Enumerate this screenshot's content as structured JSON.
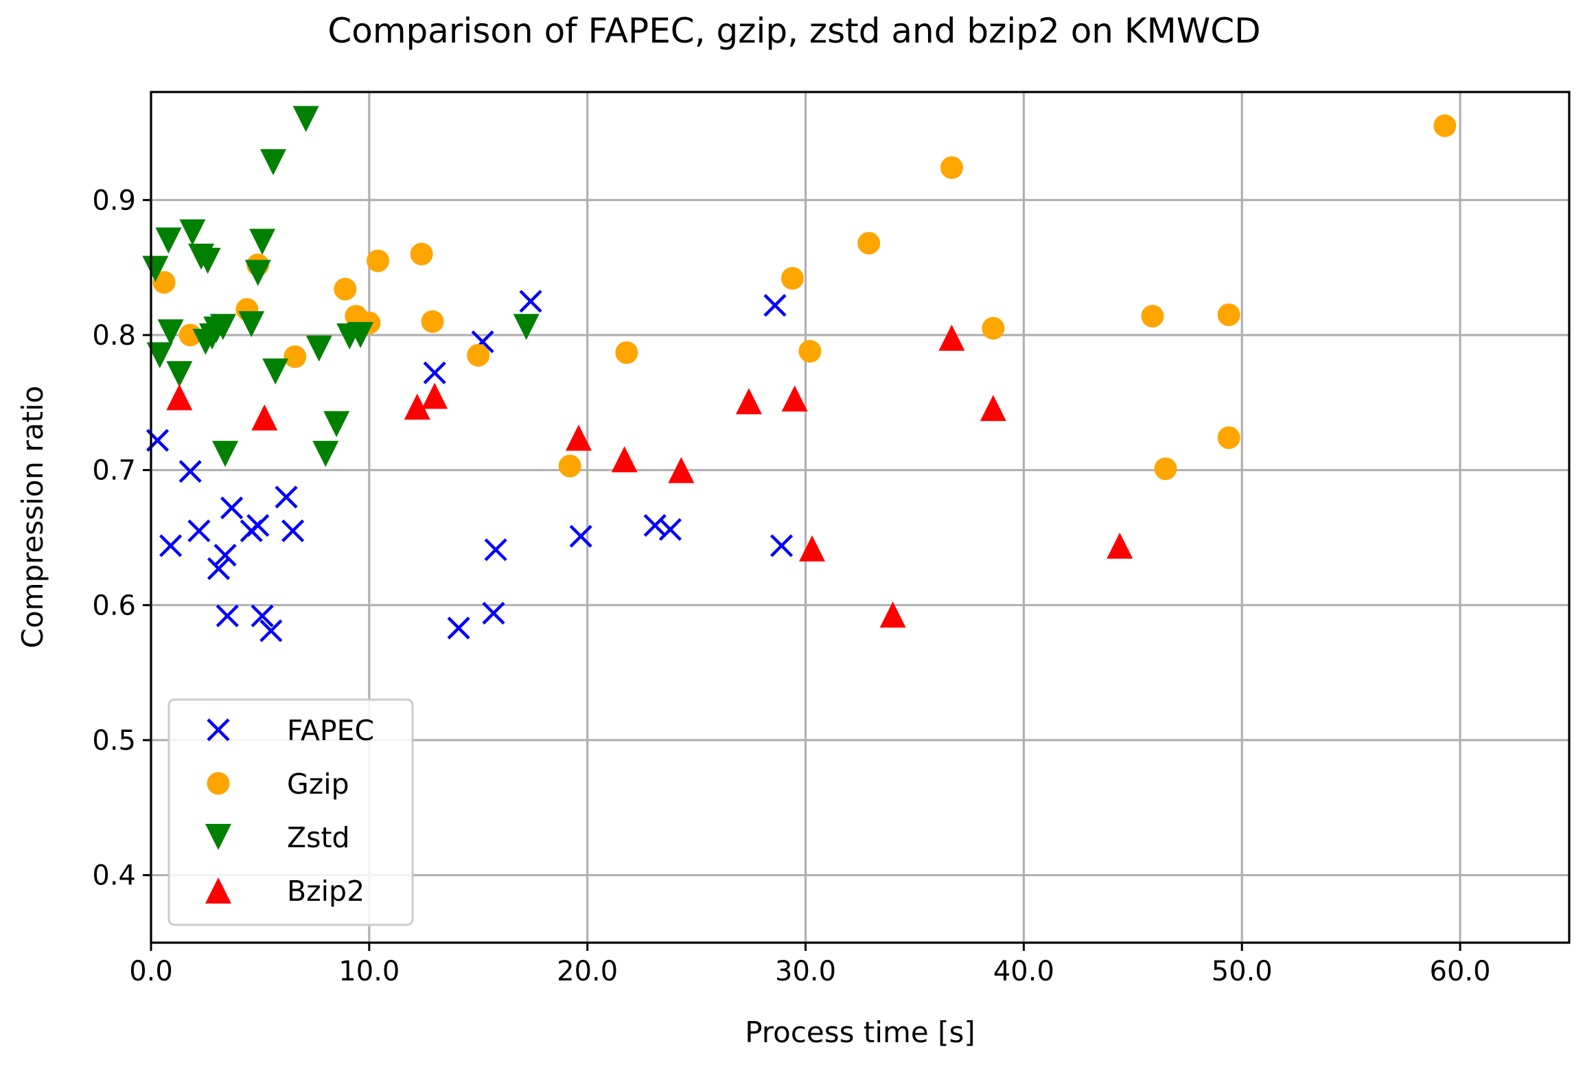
{
  "chart_data": {
    "type": "scatter",
    "title": "Comparison of FAPEC, gzip, zstd and bzip2 on KMWCD",
    "xlabel": "Process time [s]",
    "ylabel": "Compression ratio",
    "xlim": [
      0,
      65
    ],
    "ylim": [
      0.35,
      0.98
    ],
    "xticks": [
      0,
      10,
      20,
      30,
      40,
      50,
      60
    ],
    "xtick_labels": [
      "0.0",
      "10.0",
      "20.0",
      "30.0",
      "40.0",
      "50.0",
      "60.0"
    ],
    "yticks": [
      0.4,
      0.5,
      0.6,
      0.7,
      0.8,
      0.9
    ],
    "ytick_labels": [
      "0.4",
      "0.5",
      "0.6",
      "0.7",
      "0.8",
      "0.9"
    ],
    "grid": true,
    "legend_position": "lower-left",
    "series": [
      {
        "name": "FAPEC",
        "marker": "x",
        "color": "#0000ff",
        "points": [
          [
            0.3,
            0.722
          ],
          [
            0.9,
            0.644
          ],
          [
            1.8,
            0.699
          ],
          [
            2.2,
            0.655
          ],
          [
            3.1,
            0.627
          ],
          [
            3.4,
            0.637
          ],
          [
            3.5,
            0.592
          ],
          [
            3.7,
            0.672
          ],
          [
            4.6,
            0.655
          ],
          [
            4.9,
            0.659
          ],
          [
            5.1,
            0.592
          ],
          [
            5.5,
            0.581
          ],
          [
            6.2,
            0.68
          ],
          [
            6.5,
            0.655
          ],
          [
            14.1,
            0.583
          ],
          [
            15.2,
            0.795
          ],
          [
            15.7,
            0.594
          ],
          [
            15.8,
            0.641
          ],
          [
            17.4,
            0.825
          ],
          [
            13.0,
            0.772
          ],
          [
            19.7,
            0.651
          ],
          [
            23.1,
            0.659
          ],
          [
            23.8,
            0.656
          ],
          [
            28.6,
            0.822
          ],
          [
            28.9,
            0.644
          ]
        ]
      },
      {
        "name": "Gzip",
        "marker": "o",
        "color": "#ffa500",
        "points": [
          [
            0.6,
            0.839
          ],
          [
            1.8,
            0.8
          ],
          [
            4.4,
            0.819
          ],
          [
            4.9,
            0.852
          ],
          [
            6.6,
            0.784
          ],
          [
            8.9,
            0.834
          ],
          [
            9.4,
            0.814
          ],
          [
            10.0,
            0.809
          ],
          [
            10.4,
            0.855
          ],
          [
            12.4,
            0.86
          ],
          [
            12.9,
            0.81
          ],
          [
            15.0,
            0.785
          ],
          [
            19.2,
            0.703
          ],
          [
            21.8,
            0.787
          ],
          [
            29.4,
            0.842
          ],
          [
            30.2,
            0.788
          ],
          [
            32.9,
            0.868
          ],
          [
            36.7,
            0.924
          ],
          [
            38.6,
            0.805
          ],
          [
            45.9,
            0.814
          ],
          [
            46.5,
            0.701
          ],
          [
            49.4,
            0.815
          ],
          [
            49.4,
            0.724
          ],
          [
            59.3,
            0.955
          ]
        ]
      },
      {
        "name": "Zstd",
        "marker": "v",
        "color": "#008000",
        "points": [
          [
            0.2,
            0.849
          ],
          [
            0.4,
            0.785
          ],
          [
            0.8,
            0.87
          ],
          [
            0.9,
            0.802
          ],
          [
            1.3,
            0.771
          ],
          [
            1.9,
            0.876
          ],
          [
            2.3,
            0.858
          ],
          [
            2.5,
            0.795
          ],
          [
            2.6,
            0.855
          ],
          [
            2.8,
            0.799
          ],
          [
            3.0,
            0.804
          ],
          [
            3.3,
            0.806
          ],
          [
            3.4,
            0.712
          ],
          [
            4.6,
            0.808
          ],
          [
            4.9,
            0.846
          ],
          [
            5.1,
            0.869
          ],
          [
            5.6,
            0.928
          ],
          [
            5.7,
            0.773
          ],
          [
            7.1,
            0.96
          ],
          [
            7.7,
            0.79
          ],
          [
            8.0,
            0.712
          ],
          [
            8.5,
            0.734
          ],
          [
            9.1,
            0.799
          ],
          [
            9.6,
            0.8
          ],
          [
            17.2,
            0.806
          ]
        ]
      },
      {
        "name": "Bzip2",
        "marker": "^",
        "color": "#ff0000",
        "points": [
          [
            1.3,
            0.754
          ],
          [
            5.2,
            0.739
          ],
          [
            12.2,
            0.747
          ],
          [
            13.0,
            0.755
          ],
          [
            19.6,
            0.724
          ],
          [
            21.7,
            0.708
          ],
          [
            24.3,
            0.7
          ],
          [
            27.4,
            0.751
          ],
          [
            29.5,
            0.753
          ],
          [
            30.3,
            0.642
          ],
          [
            34.0,
            0.593
          ],
          [
            36.7,
            0.798
          ],
          [
            38.6,
            0.746
          ],
          [
            44.4,
            0.644
          ]
        ]
      }
    ]
  }
}
